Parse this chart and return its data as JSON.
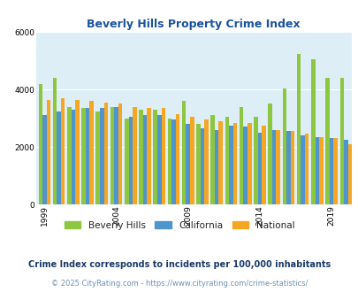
{
  "title": "Beverly Hills Property Crime Index",
  "subtitle": "Crime Index corresponds to incidents per 100,000 inhabitants",
  "footer": "© 2025 CityRating.com - https://www.cityrating.com/crime-statistics/",
  "years": [
    1999,
    2000,
    2001,
    2002,
    2003,
    2004,
    2005,
    2006,
    2007,
    2008,
    2009,
    2010,
    2011,
    2012,
    2013,
    2014,
    2015,
    2016,
    2017,
    2018,
    2019,
    2020
  ],
  "beverly_hills": [
    4200,
    4400,
    3400,
    3350,
    3250,
    3400,
    3000,
    3300,
    3300,
    3000,
    3600,
    2800,
    3100,
    3050,
    3400,
    3050,
    3500,
    4050,
    5250,
    5050,
    4400,
    4400
  ],
  "california": [
    3100,
    3250,
    3300,
    3350,
    3350,
    3400,
    3050,
    3100,
    3100,
    2950,
    2800,
    2650,
    2600,
    2750,
    2700,
    2500,
    2600,
    2550,
    2400,
    2350,
    2300,
    2250
  ],
  "national": [
    3650,
    3700,
    3650,
    3600,
    3550,
    3500,
    3400,
    3350,
    3350,
    3150,
    3050,
    2950,
    2900,
    2850,
    2850,
    2750,
    2600,
    2550,
    2450,
    2350,
    2300,
    2100
  ],
  "bh_color": "#8dc63f",
  "ca_color": "#4f94cd",
  "na_color": "#f5a623",
  "bg_color": "#ddeef6",
  "ylim": [
    0,
    6000
  ],
  "yticks": [
    0,
    2000,
    4000,
    6000
  ],
  "title_color": "#1a52a0",
  "subtitle_color": "#1a3a6a",
  "footer_color": "#7090b0",
  "grid_color": "#ffffff",
  "bar_width": 0.28,
  "shown_years": [
    1999,
    2004,
    2009,
    2014,
    2019
  ]
}
